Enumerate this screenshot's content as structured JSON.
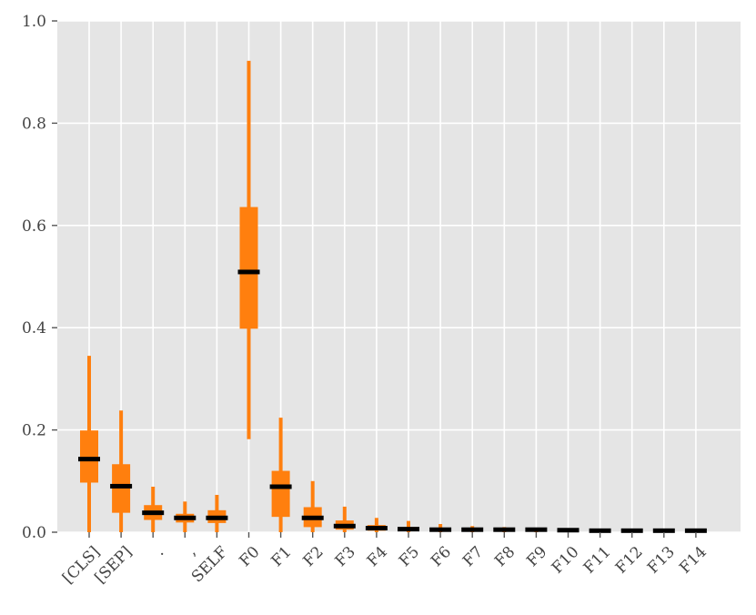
{
  "chart_data": {
    "type": "boxplot",
    "title": "",
    "xlabel": "",
    "ylabel": "",
    "ylim": [
      0.0,
      1.0
    ],
    "yticks": [
      "0.0",
      "0.2",
      "0.4",
      "0.6",
      "0.8",
      "1.0"
    ],
    "grid": true,
    "categories": [
      "[CLS]",
      "[SEP]",
      ".",
      ",",
      "SELF",
      "F0",
      "F1",
      "F2",
      "F3",
      "F4",
      "F5",
      "F6",
      "F7",
      "F8",
      "F9",
      "F10",
      "F11",
      "F12",
      "F13",
      "F14"
    ],
    "boxes": [
      {
        "whisker_low": 0.0,
        "q1": 0.097,
        "median": 0.143,
        "q3": 0.199,
        "whisker_high": 0.345
      },
      {
        "whisker_low": 0.0,
        "q1": 0.038,
        "median": 0.09,
        "q3": 0.133,
        "whisker_high": 0.238
      },
      {
        "whisker_low": 0.0,
        "q1": 0.024,
        "median": 0.038,
        "q3": 0.053,
        "whisker_high": 0.089
      },
      {
        "whisker_low": 0.0,
        "q1": 0.019,
        "median": 0.028,
        "q3": 0.036,
        "whisker_high": 0.06
      },
      {
        "whisker_low": 0.0,
        "q1": 0.018,
        "median": 0.028,
        "q3": 0.043,
        "whisker_high": 0.073
      },
      {
        "whisker_low": 0.182,
        "q1": 0.398,
        "median": 0.509,
        "q3": 0.636,
        "whisker_high": 0.922
      },
      {
        "whisker_low": 0.0,
        "q1": 0.03,
        "median": 0.089,
        "q3": 0.12,
        "whisker_high": 0.224
      },
      {
        "whisker_low": 0.0,
        "q1": 0.01,
        "median": 0.028,
        "q3": 0.049,
        "whisker_high": 0.1
      },
      {
        "whisker_low": 0.0,
        "q1": 0.005,
        "median": 0.012,
        "q3": 0.023,
        "whisker_high": 0.05
      },
      {
        "whisker_low": 0.0,
        "q1": 0.003,
        "median": 0.008,
        "q3": 0.014,
        "whisker_high": 0.028
      },
      {
        "whisker_low": 0.0,
        "q1": 0.002,
        "median": 0.006,
        "q3": 0.01,
        "whisker_high": 0.022
      },
      {
        "whisker_low": 0.0,
        "q1": 0.001,
        "median": 0.005,
        "q3": 0.008,
        "whisker_high": 0.016
      },
      {
        "whisker_low": 0.0,
        "q1": 0.001,
        "median": 0.005,
        "q3": 0.007,
        "whisker_high": 0.012
      },
      {
        "whisker_low": 0.0,
        "q1": 0.001,
        "median": 0.005,
        "q3": 0.006,
        "whisker_high": 0.01
      },
      {
        "whisker_low": 0.0,
        "q1": 0.001,
        "median": 0.005,
        "q3": 0.006,
        "whisker_high": 0.008
      },
      {
        "whisker_low": 0.0,
        "q1": 0.001,
        "median": 0.004,
        "q3": 0.005,
        "whisker_high": 0.007
      },
      {
        "whisker_low": 0.0,
        "q1": 0.001,
        "median": 0.003,
        "q3": 0.004,
        "whisker_high": 0.005
      },
      {
        "whisker_low": 0.0,
        "q1": 0.001,
        "median": 0.003,
        "q3": 0.004,
        "whisker_high": 0.005
      },
      {
        "whisker_low": 0.0,
        "q1": 0.001,
        "median": 0.003,
        "q3": 0.004,
        "whisker_high": 0.004
      },
      {
        "whisker_low": 0.0,
        "q1": 0.001,
        "median": 0.003,
        "q3": 0.003,
        "whisker_high": 0.004
      }
    ],
    "colors": {
      "box": "#ff7f0e",
      "median": "#000000",
      "background": "#e5e5e5",
      "grid": "#ffffff"
    }
  }
}
